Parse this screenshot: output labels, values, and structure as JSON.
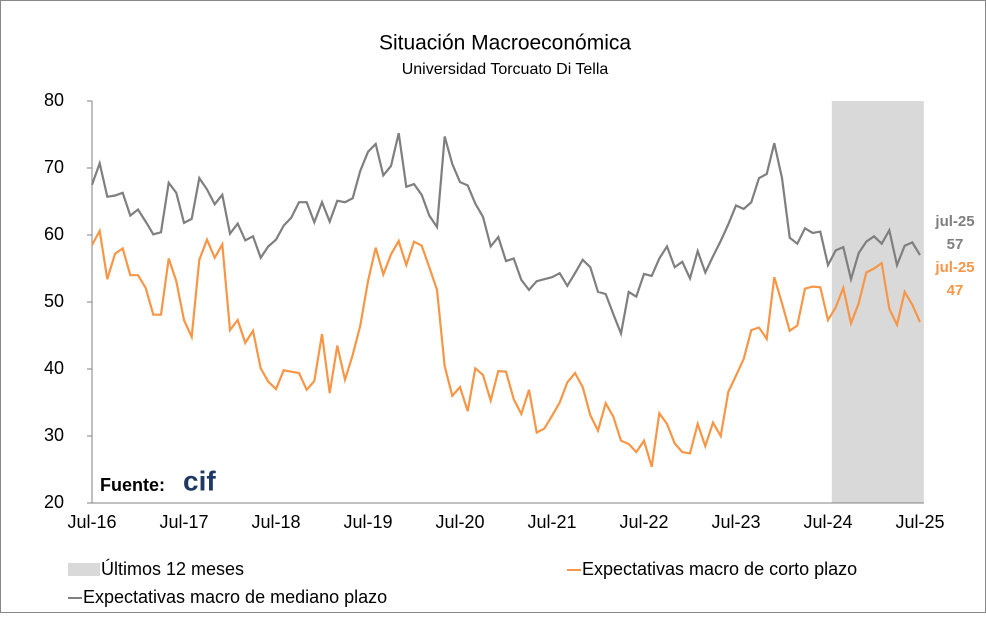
{
  "chart_data": {
    "type": "line",
    "title": "Situación Macroeconómica",
    "subtitle": "Universidad Torcuato Di Tella",
    "categories": [
      "Jul-16",
      null,
      null,
      null,
      null,
      null,
      null,
      null,
      null,
      null,
      null,
      null,
      "Jul-17",
      null,
      null,
      null,
      null,
      null,
      null,
      null,
      null,
      null,
      null,
      null,
      "Jul-18",
      null,
      null,
      null,
      null,
      null,
      null,
      null,
      null,
      null,
      null,
      null,
      "Jul-19",
      null,
      null,
      null,
      null,
      null,
      null,
      null,
      null,
      null,
      null,
      null,
      "Jul-20",
      null,
      null,
      null,
      null,
      null,
      null,
      null,
      null,
      null,
      null,
      null,
      "Jul-21",
      null,
      null,
      null,
      null,
      null,
      null,
      null,
      null,
      null,
      null,
      null,
      "Jul-22",
      null,
      null,
      null,
      null,
      null,
      null,
      null,
      null,
      null,
      null,
      null,
      "Jul-23",
      null,
      null,
      null,
      null,
      null,
      null,
      null,
      null,
      null,
      null,
      null,
      "Jul-24",
      null,
      null,
      null,
      null,
      null,
      null,
      null,
      null,
      null,
      null,
      null,
      "Jul-25"
    ],
    "series": [
      {
        "name": "Expectativas macro de mediano plazo",
        "color": "#7f7f7f",
        "values": [
          67.5,
          70.7,
          65.7,
          65.9,
          66.3,
          62.9,
          63.8,
          62.0,
          60.1,
          60.4,
          67.8,
          66.3,
          61.8,
          62.4,
          68.5,
          66.8,
          64.6,
          66.0,
          60.2,
          61.7,
          59.2,
          59.8,
          56.6,
          58.3,
          59.3,
          61.4,
          62.6,
          64.9,
          64.9,
          61.9,
          64.9,
          62.0,
          65.1,
          64.9,
          65.5,
          69.6,
          72.4,
          73.6,
          68.9,
          70.3,
          75.2,
          67.2,
          67.6,
          66.0,
          62.9,
          61.2,
          74.7,
          70.6,
          67.9,
          67.4,
          64.7,
          62.7,
          58.3,
          59.7,
          56.1,
          56.5,
          53.3,
          51.8,
          53.1,
          53.4,
          53.7,
          54.3,
          52.4,
          54.3,
          56.3,
          55.2,
          51.5,
          51.2,
          48.2,
          45.3,
          51.5,
          50.8,
          54.2,
          53.9,
          56.5,
          58.3,
          55.2,
          56.0,
          53.5,
          57.6,
          54.4,
          56.8,
          59.1,
          61.6,
          64.4,
          63.9,
          64.9,
          68.5,
          69.1,
          73.7,
          68.5,
          59.6,
          58.7,
          61.0,
          60.3,
          60.5,
          55.5,
          57.7,
          58.2,
          53.4,
          57.3,
          59.0,
          59.8,
          58.7,
          60.7,
          55.5,
          58.4,
          58.9,
          57
        ]
      },
      {
        "name": "Expectativas macro de corto plazo",
        "color": "#f79646",
        "values": [
          58.5,
          60.6,
          53.4,
          57.2,
          58.0,
          54.0,
          54.0,
          52.1,
          48.1,
          48.1,
          56.5,
          53.1,
          47.3,
          44.8,
          56.3,
          59.3,
          56.6,
          58.6,
          45.8,
          47.3,
          43.9,
          45.7,
          40.1,
          38.1,
          37.0,
          39.8,
          39.6,
          39.4,
          36.9,
          38.2,
          45.2,
          36.4,
          43.5,
          38.4,
          42.1,
          46.5,
          53.1,
          58.1,
          54.1,
          57.1,
          59.1,
          55.5,
          59.0,
          58.4,
          55.2,
          51.8,
          40.4,
          36.0,
          37.3,
          33.7,
          40.1,
          39.1,
          35.3,
          39.7,
          39.6,
          35.5,
          33.3,
          36.9,
          30.5,
          31.1,
          33.0,
          35.0,
          38.0,
          39.4,
          37.3,
          33.1,
          30.8,
          34.9,
          32.9,
          29.3,
          28.8,
          27.6,
          29.3,
          25.4,
          33.4,
          31.8,
          28.9,
          27.6,
          27.4,
          31.8,
          28.5,
          32.0,
          30.0,
          36.6,
          39.0,
          41.5,
          45.8,
          46.2,
          44.5,
          53.7,
          49.8,
          45.7,
          46.5,
          52.0,
          52.3,
          52.2,
          47.3,
          49.2,
          52.1,
          46.8,
          49.8,
          54.4,
          55.0,
          55.8,
          49.0,
          46.6,
          51.5,
          49.6,
          47
        ]
      }
    ],
    "shade": {
      "name": "Últimos 12 meses",
      "color": "#d9d9d9",
      "span": [
        97,
        108
      ]
    },
    "annotations": [
      "jul-25",
      "jul-25"
    ],
    "source": "Fuente:",
    "source_logo": "cif",
    "ylim": [
      20,
      80
    ],
    "yticks": [
      20,
      30,
      40,
      50,
      60,
      70,
      80
    ],
    "grid": false
  }
}
